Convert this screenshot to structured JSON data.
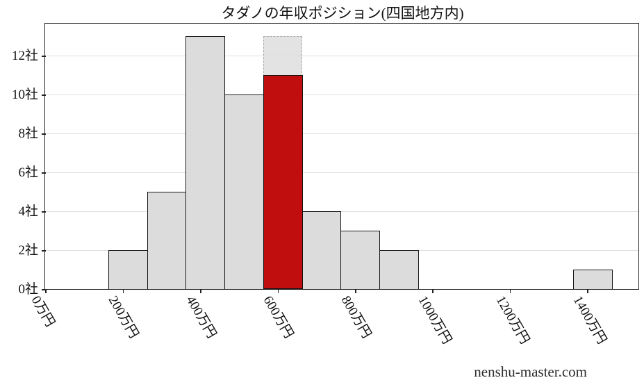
{
  "watermark": "nenshu-master.com",
  "chart_data": {
    "type": "bar",
    "subtype": "histogram",
    "title": "タダノの年収ポジション(四国地方内)",
    "x_unit": "万円",
    "y_unit": "社",
    "bins": {
      "start": 164,
      "width": 100,
      "counts": [
        2,
        5,
        13,
        10,
        13,
        4,
        3,
        2,
        0,
        0,
        0,
        0,
        1
      ]
    },
    "highlight": {
      "bin_index": 4,
      "red_bar_value": 11,
      "ghost_bar_value": 13
    },
    "x_ticks": {
      "values": [
        0,
        200,
        400,
        600,
        800,
        1000,
        1200,
        1400
      ],
      "labels": [
        "0万円",
        "200万円",
        "400万円",
        "600万円",
        "800万円",
        "1000万円",
        "1200万円",
        "1400万円"
      ]
    },
    "y_ticks": {
      "values": [
        0,
        2,
        4,
        6,
        8,
        10,
        12
      ],
      "labels": [
        "0社",
        "2社",
        "4社",
        "6社",
        "8社",
        "10社",
        "12社"
      ]
    },
    "xlim": [
      0,
      1532
    ],
    "ylim": [
      0,
      13.65
    ],
    "grid": "horizontal",
    "legend": false,
    "colors": {
      "bar_fill": "#dcdcdc",
      "bar_edge": "#1a1a1a",
      "highlight_fill": "#c00d0d",
      "highlight_edge": "#111111",
      "ghost_fill": "rgba(222,222,222,0.85)",
      "ghost_edge": "#ababab",
      "grid": "#e0e0e0",
      "axis": "#222222",
      "text": "#111111",
      "watermark": "#2b2b2b"
    }
  }
}
